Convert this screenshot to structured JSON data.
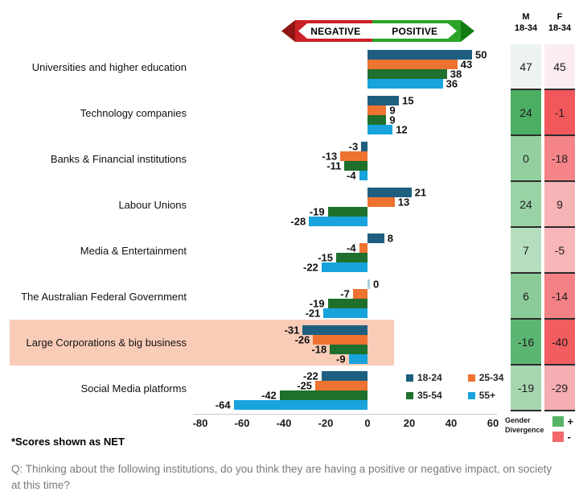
{
  "banner": {
    "negative_label": "NEGATIVE",
    "positive_label": "POSITIVE",
    "colors": {
      "arrow_left": "#8e1713",
      "negative": "#cb2026",
      "positive": "#2ba428",
      "arrow_right": "#127c12"
    }
  },
  "chart_data": {
    "type": "bar",
    "orientation": "horizontal",
    "categories": [
      "Universities and higher education",
      "Technology companies",
      "Banks & Financial institutions",
      "Labour Unions",
      "Media & Entertainment",
      "The Australian Federal Government",
      "Large Corporations & big business",
      "Social Media platforms"
    ],
    "series": [
      {
        "name": "18-24",
        "color": "#1e5f80",
        "values": [
          50,
          15,
          -3,
          21,
          8,
          0,
          -31,
          -22
        ]
      },
      {
        "name": "25-34",
        "color": "#ee7230",
        "values": [
          43,
          9,
          -13,
          13,
          -4,
          -7,
          -26,
          -25
        ]
      },
      {
        "name": "35-54",
        "color": "#1e702c",
        "values": [
          38,
          9,
          -11,
          -19,
          -15,
          -19,
          -18,
          -42
        ]
      },
      {
        "name": "55+",
        "color": "#18a3dd",
        "values": [
          36,
          12,
          -4,
          -28,
          -22,
          -21,
          -9,
          -64
        ]
      }
    ],
    "xticks": [
      -80,
      -60,
      -40,
      -20,
      0,
      20,
      40,
      60
    ],
    "xlim": [
      -83,
      62
    ],
    "gridlines": false,
    "legend_position": "bottom-right",
    "highlight": {
      "category_index": 6,
      "color": "#f9ccb8"
    },
    "zero_bar_color": "#a9cedc"
  },
  "gender_table": {
    "male_header_line1": "M",
    "male_header_line2": "18-34",
    "female_header_line1": "F",
    "female_header_line2": "18-34",
    "rows": [
      {
        "m": 47,
        "f": 45,
        "m_bg": "#edf3ee",
        "f_bg": "#fbedef"
      },
      {
        "m": 24,
        "f": -1,
        "m_bg": "#4cae62",
        "f_bg": "#f1585c"
      },
      {
        "m": 0,
        "f": -18,
        "m_bg": "#93d0a0",
        "f_bg": "#f48487"
      },
      {
        "m": 24,
        "f": 9,
        "m_bg": "#99d3a5",
        "f_bg": "#f6b2b5"
      },
      {
        "m": 7,
        "f": -5,
        "m_bg": "#b6debe",
        "f_bg": "#f7b5b7"
      },
      {
        "m": 6,
        "f": -14,
        "m_bg": "#8bcb99",
        "f_bg": "#f48185"
      },
      {
        "m": -16,
        "f": -40,
        "m_bg": "#5cb673",
        "f_bg": "#f15d60"
      },
      {
        "m": -19,
        "f": -29,
        "m_bg": "#a6d6b0",
        "f_bg": "#f5aeb1"
      }
    ]
  },
  "divergence_legend": {
    "line1": "Gender",
    "line2": "Divergence",
    "plus_label": "+",
    "minus_label": "-",
    "plus_color": "#57b467",
    "minus_color": "#f2686c"
  },
  "footnote": "*Scores shown as NET",
  "question": "Q: Thinking about the following institutions, do you think they are having a positive or negative impact, on society at this time?"
}
